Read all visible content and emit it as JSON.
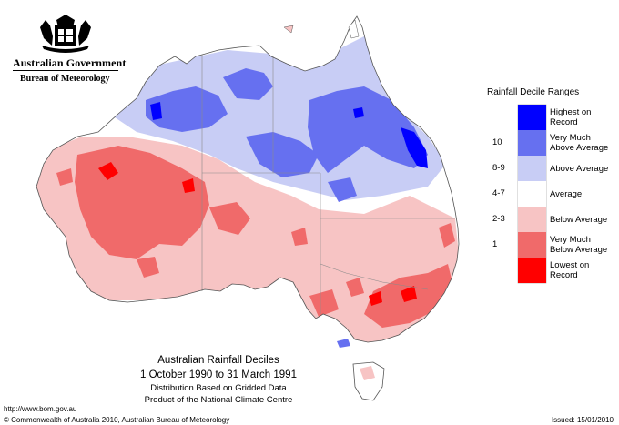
{
  "branding": {
    "government": "Australian Government",
    "bureau": "Bureau of Meteorology"
  },
  "map": {
    "title": "Australian Rainfall Deciles",
    "period": "1 October 1990 to 31 March 1991",
    "note_line1": "Distribution Based on Gridded Data",
    "note_line2": "Product of the National Climate Centre"
  },
  "legend": {
    "title": "Rainfall Decile Ranges",
    "categories": [
      {
        "label": "Highest on Record",
        "line1": "Highest on",
        "line2": "Record",
        "decile": "",
        "color": "#0000ff"
      },
      {
        "label": "Very Much Above Average",
        "line1": "Very Much",
        "line2": "Above Average",
        "decile": "10",
        "color": "#6670f0"
      },
      {
        "label": "Above Average",
        "line1": "Above Average",
        "line2": "",
        "decile": "8-9",
        "color": "#c8cdf5"
      },
      {
        "label": "Average",
        "line1": "Average",
        "line2": "",
        "decile": "4-7",
        "color": "#ffffff"
      },
      {
        "label": "Below Average",
        "line1": "Below Average",
        "line2": "",
        "decile": "2-3",
        "color": "#f7c4c4"
      },
      {
        "label": "Very Much Below Average",
        "line1": "Very Much",
        "line2": "Below Average",
        "decile": "1",
        "color": "#f06a6a"
      },
      {
        "label": "Lowest on Record",
        "line1": "Lowest on",
        "line2": "Record",
        "decile": "",
        "color": "#ff0000"
      }
    ]
  },
  "footer": {
    "url": "http://www.bom.gov.au",
    "copyright": "© Commonwealth of Australia 2010, Australian Bureau of Meteorology",
    "issued": "Issued: 15/01/2010"
  }
}
